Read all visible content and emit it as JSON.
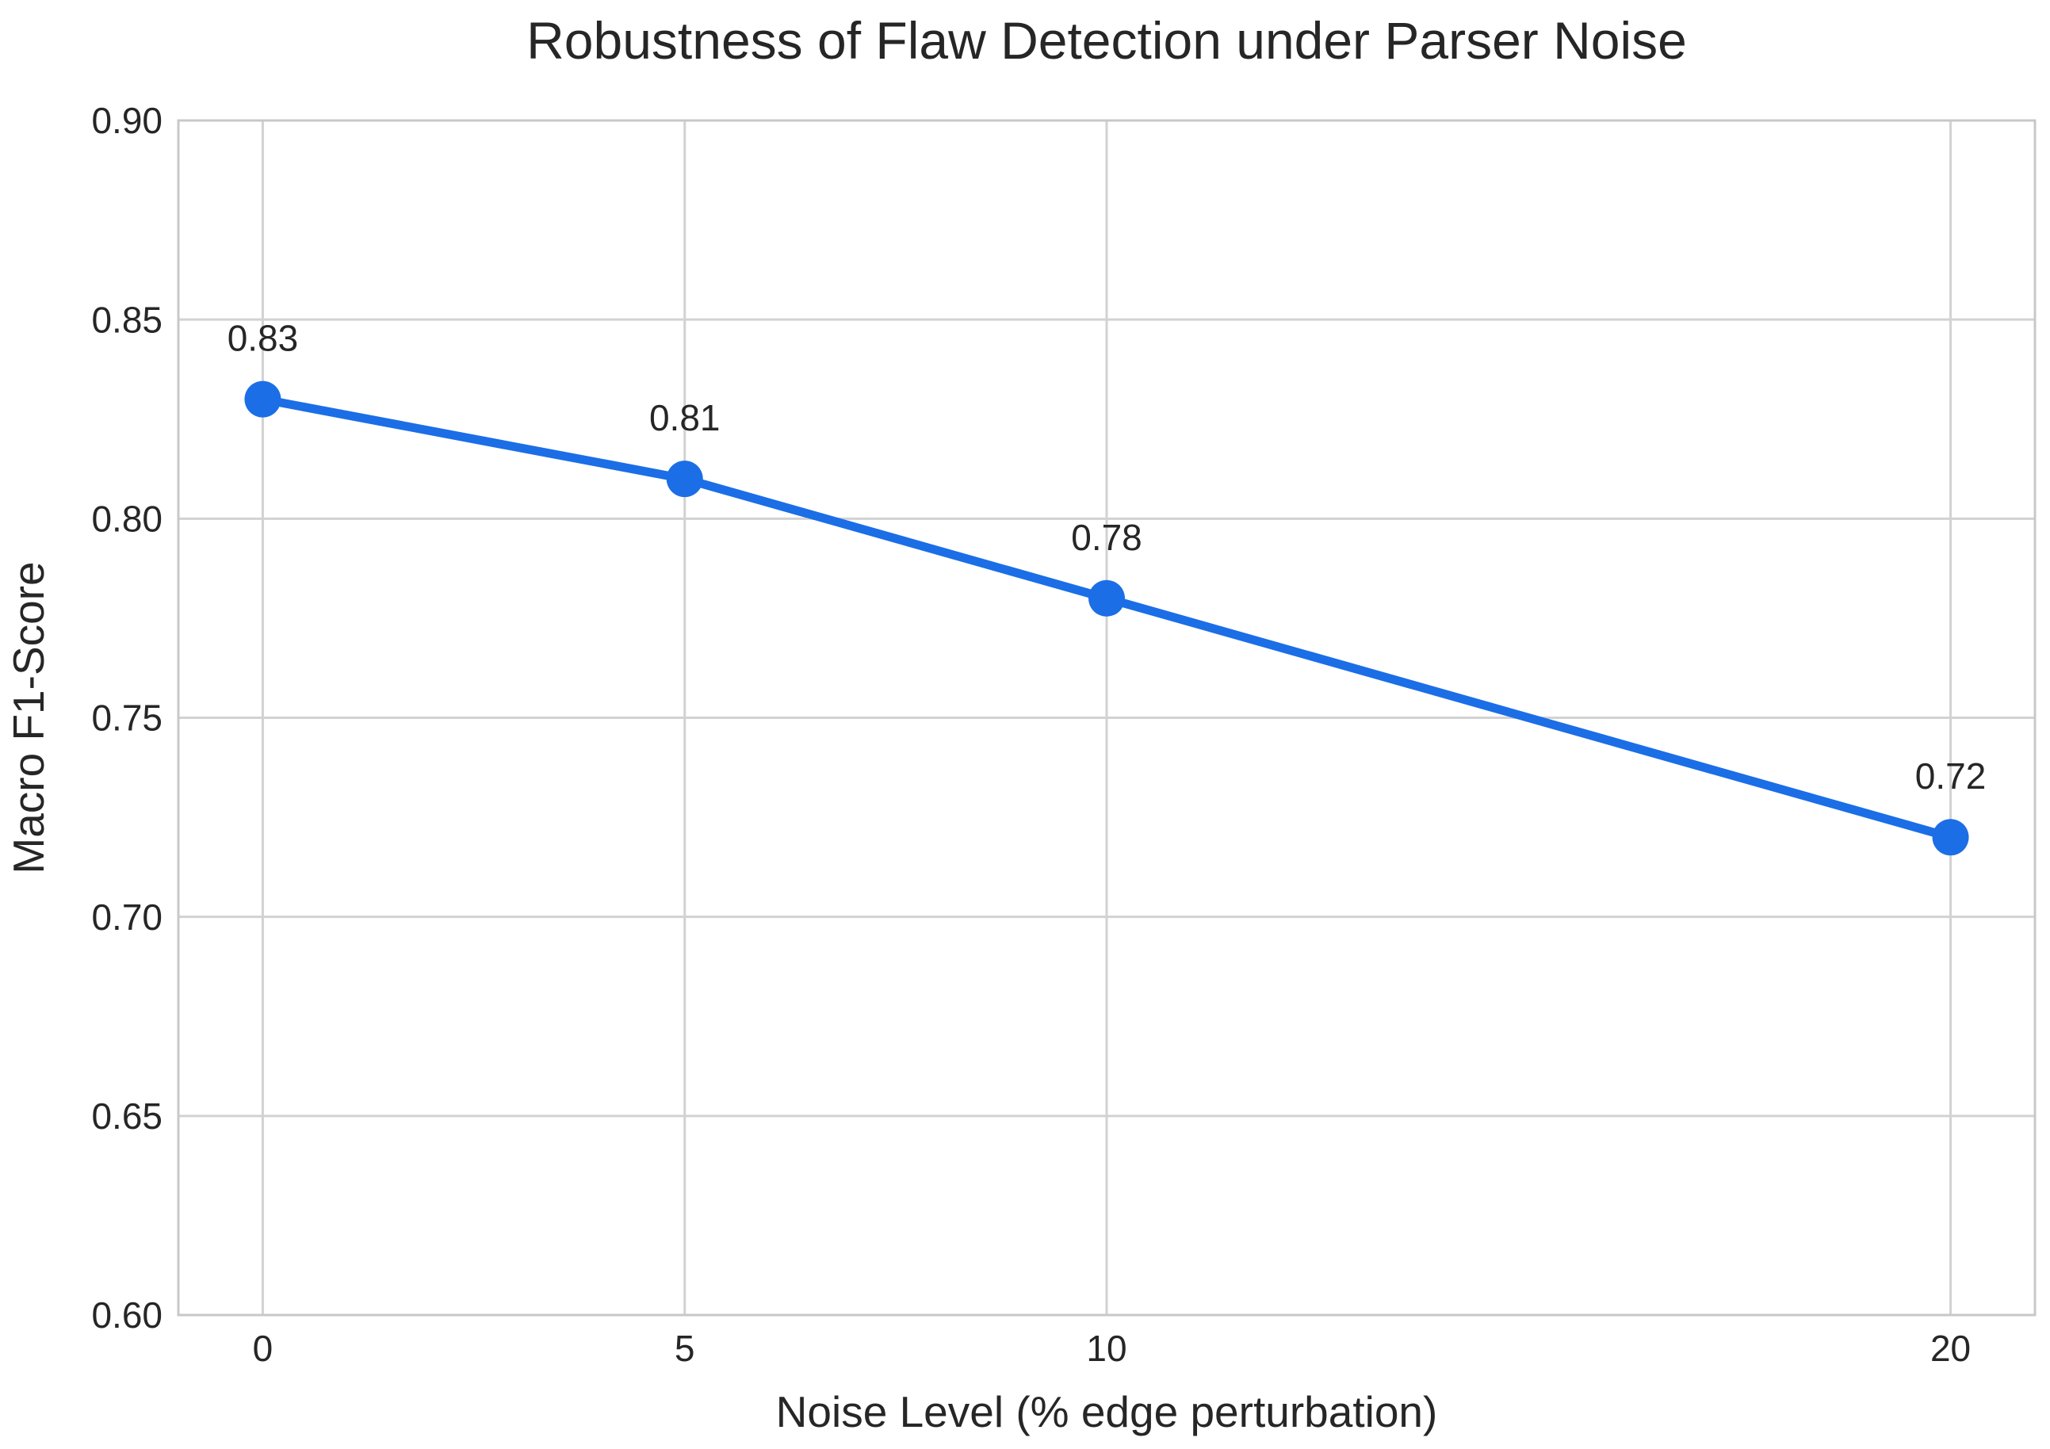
{
  "figure": {
    "title": "Robustness of Flaw Detection under Parser Noise"
  },
  "chart_data": {
    "type": "line",
    "title": "Robustness of Flaw Detection under Parser Noise",
    "xlabel": "Noise Level (% edge perturbation)",
    "ylabel": "Macro F1-Score",
    "x": [
      0,
      5,
      10,
      20
    ],
    "y": [
      0.83,
      0.81,
      0.78,
      0.72
    ],
    "point_labels": [
      "0.83",
      "0.81",
      "0.78",
      "0.72"
    ],
    "xticks": [
      {
        "v": 0,
        "label": "0"
      },
      {
        "v": 5,
        "label": "5"
      },
      {
        "v": 10,
        "label": "10"
      },
      {
        "v": 20,
        "label": "20"
      }
    ],
    "yticks": [
      {
        "v": 0.6,
        "label": "0.60"
      },
      {
        "v": 0.65,
        "label": "0.65"
      },
      {
        "v": 0.7,
        "label": "0.70"
      },
      {
        "v": 0.75,
        "label": "0.75"
      },
      {
        "v": 0.8,
        "label": "0.80"
      },
      {
        "v": 0.85,
        "label": "0.85"
      },
      {
        "v": 0.9,
        "label": "0.90"
      }
    ],
    "xlim": [
      0,
      20
    ],
    "ylim": [
      0.6,
      0.9
    ],
    "x_margin_frac": 0.05,
    "grid": true,
    "legend": false,
    "colors": {
      "line": "#1b6ee6",
      "marker": "#1b6ee6",
      "grid": "#d2d2d2",
      "axis_border": "#c8c8c8",
      "text": "#262626",
      "background": "#ffffff"
    }
  }
}
